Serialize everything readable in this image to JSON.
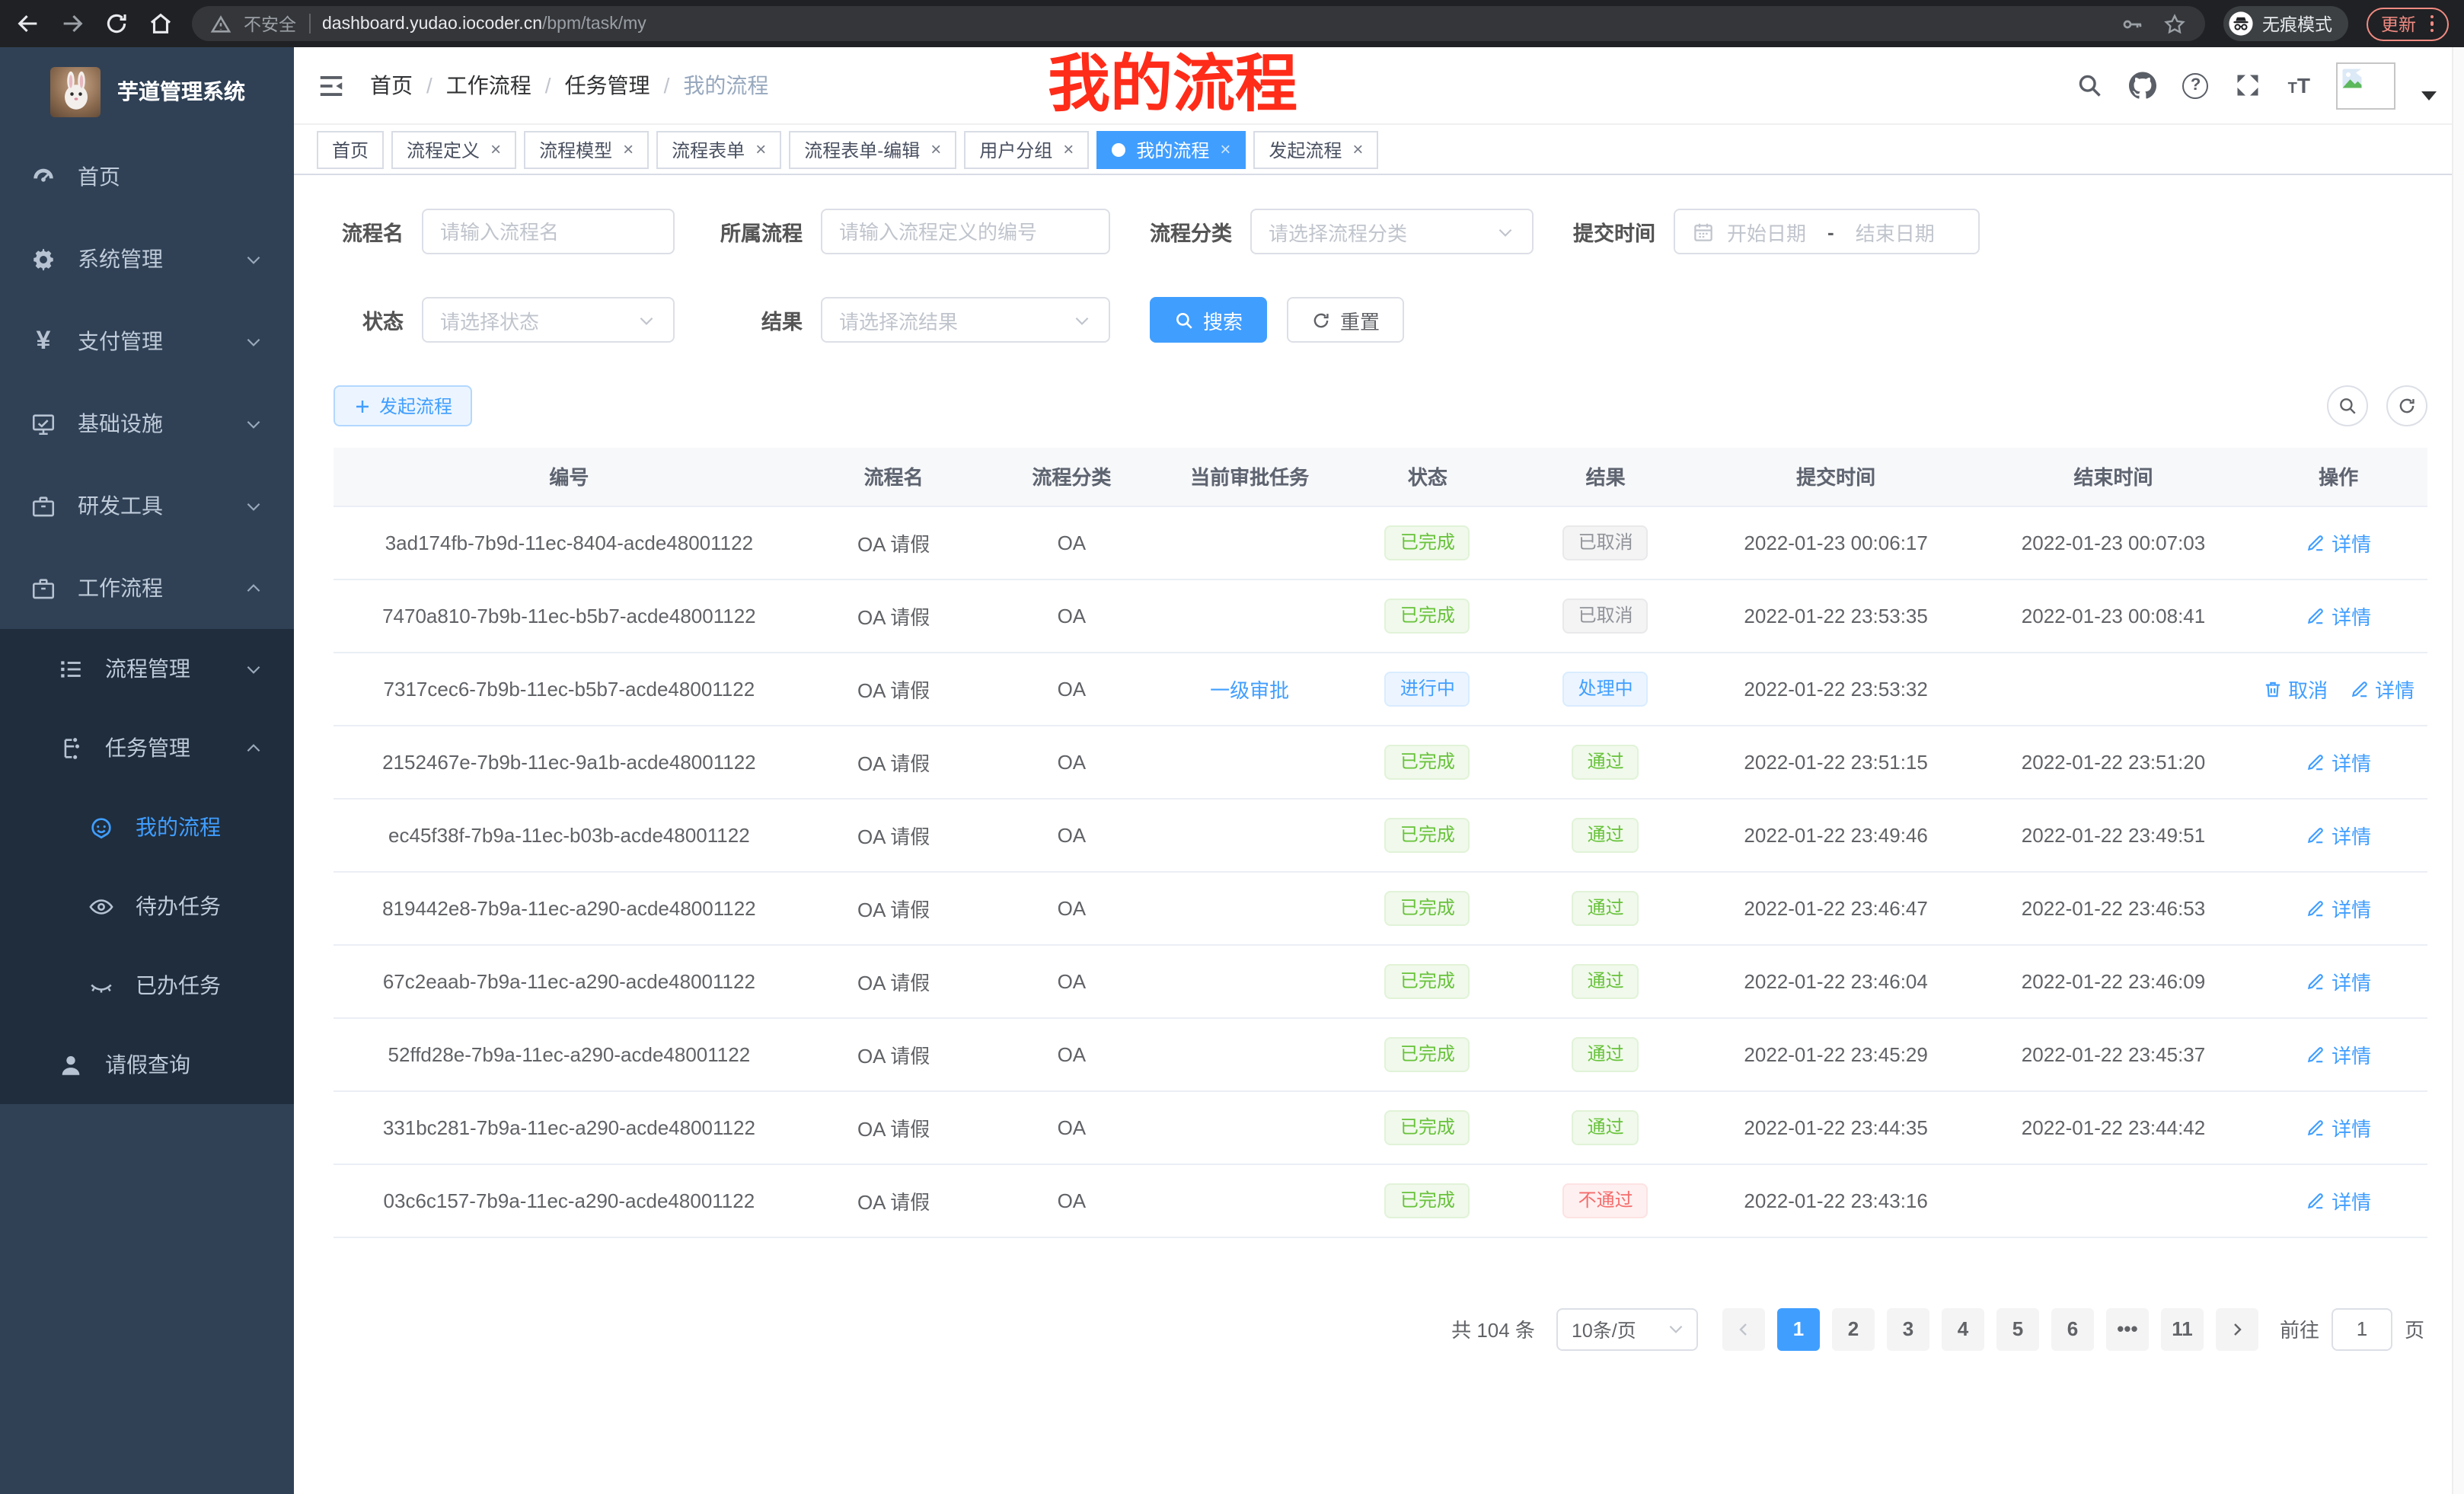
{
  "browser": {
    "security_label": "不安全",
    "url_domain": "dashboard.yudao.iocoder.cn",
    "url_path": "/bpm/task/my",
    "incognito_label": "无痕模式",
    "update_label": "更新"
  },
  "sidebar": {
    "title": "芋道管理系统",
    "items": [
      {
        "label": "首页",
        "icon": "dashboard-icon",
        "level": 1
      },
      {
        "label": "系统管理",
        "icon": "gear-icon",
        "level": 1,
        "chevron": "down"
      },
      {
        "label": "支付管理",
        "icon": "yen-icon",
        "level": 1,
        "chevron": "down"
      },
      {
        "label": "基础设施",
        "icon": "monitor-icon",
        "level": 1,
        "chevron": "down"
      },
      {
        "label": "研发工具",
        "icon": "briefcase-icon",
        "level": 1,
        "chevron": "down"
      },
      {
        "label": "工作流程",
        "icon": "briefcase-icon",
        "level": 1,
        "chevron": "up"
      },
      {
        "label": "流程管理",
        "icon": "list-icon",
        "level": 2,
        "chevron": "down",
        "dark": true
      },
      {
        "label": "任务管理",
        "icon": "tree-icon",
        "level": 2,
        "chevron": "up",
        "dark": true
      },
      {
        "label": "我的流程",
        "icon": "robot-icon",
        "level": 3,
        "active": true,
        "dark": true
      },
      {
        "label": "待办任务",
        "icon": "eye-icon",
        "level": 3,
        "dark": true
      },
      {
        "label": "已办任务",
        "icon": "eye-closed-icon",
        "level": 3,
        "dark": true
      },
      {
        "label": "请假查询",
        "icon": "user-icon",
        "level": 2,
        "dark": true
      }
    ]
  },
  "header": {
    "breadcrumb": [
      "首页",
      "工作流程",
      "任务管理",
      "我的流程"
    ],
    "annotation": "我的流程"
  },
  "tabs": [
    {
      "label": "首页"
    },
    {
      "label": "流程定义",
      "closable": true
    },
    {
      "label": "流程模型",
      "closable": true
    },
    {
      "label": "流程表单",
      "closable": true
    },
    {
      "label": "流程表单-编辑",
      "closable": true
    },
    {
      "label": "用户分组",
      "closable": true
    },
    {
      "label": "我的流程",
      "closable": true,
      "active": true
    },
    {
      "label": "发起流程",
      "closable": true
    }
  ],
  "filters": {
    "name_label": "流程名",
    "name_placeholder": "请输入流程名",
    "process_label": "所属流程",
    "process_placeholder": "请输入流程定义的编号",
    "category_label": "流程分类",
    "category_placeholder": "请选择流程分类",
    "time_label": "提交时间",
    "date_start_placeholder": "开始日期",
    "date_separator": "-",
    "date_end_placeholder": "结束日期",
    "status_label": "状态",
    "status_placeholder": "请选择状态",
    "result_label": "结果",
    "result_placeholder": "请选择流结果",
    "search_label": "搜索",
    "reset_label": "重置"
  },
  "toolbar": {
    "create_label": "发起流程"
  },
  "table": {
    "columns": [
      "编号",
      "流程名",
      "流程分类",
      "当前审批任务",
      "状态",
      "结果",
      "提交时间",
      "结束时间",
      "操作"
    ],
    "rows": [
      {
        "id": "3ad174fb-7b9d-11ec-8404-acde48001122",
        "name": "OA 请假",
        "category": "OA",
        "task": "",
        "status": {
          "label": "已完成",
          "type": "success"
        },
        "result": {
          "label": "已取消",
          "type": "info"
        },
        "submit_time": "2022-01-23 00:06:17",
        "end_time": "2022-01-23 00:07:03",
        "actions": [
          {
            "label": "详情",
            "icon": "edit-icon"
          }
        ]
      },
      {
        "id": "7470a810-7b9b-11ec-b5b7-acde48001122",
        "name": "OA 请假",
        "category": "OA",
        "task": "",
        "status": {
          "label": "已完成",
          "type": "success"
        },
        "result": {
          "label": "已取消",
          "type": "info"
        },
        "submit_time": "2022-01-22 23:53:35",
        "end_time": "2022-01-23 00:08:41",
        "actions": [
          {
            "label": "详情",
            "icon": "edit-icon"
          }
        ]
      },
      {
        "id": "7317cec6-7b9b-11ec-b5b7-acde48001122",
        "name": "OA 请假",
        "category": "OA",
        "task": "一级审批",
        "status": {
          "label": "进行中",
          "type": "primary"
        },
        "result": {
          "label": "处理中",
          "type": "primary"
        },
        "submit_time": "2022-01-22 23:53:32",
        "end_time": "",
        "actions": [
          {
            "label": "取消",
            "icon": "trash-icon"
          },
          {
            "label": "详情",
            "icon": "edit-icon"
          }
        ]
      },
      {
        "id": "2152467e-7b9b-11ec-9a1b-acde48001122",
        "name": "OA 请假",
        "category": "OA",
        "task": "",
        "status": {
          "label": "已完成",
          "type": "success"
        },
        "result": {
          "label": "通过",
          "type": "success"
        },
        "submit_time": "2022-01-22 23:51:15",
        "end_time": "2022-01-22 23:51:20",
        "actions": [
          {
            "label": "详情",
            "icon": "edit-icon"
          }
        ]
      },
      {
        "id": "ec45f38f-7b9a-11ec-b03b-acde48001122",
        "name": "OA 请假",
        "category": "OA",
        "task": "",
        "status": {
          "label": "已完成",
          "type": "success"
        },
        "result": {
          "label": "通过",
          "type": "success"
        },
        "submit_time": "2022-01-22 23:49:46",
        "end_time": "2022-01-22 23:49:51",
        "actions": [
          {
            "label": "详情",
            "icon": "edit-icon"
          }
        ]
      },
      {
        "id": "819442e8-7b9a-11ec-a290-acde48001122",
        "name": "OA 请假",
        "category": "OA",
        "task": "",
        "status": {
          "label": "已完成",
          "type": "success"
        },
        "result": {
          "label": "通过",
          "type": "success"
        },
        "submit_time": "2022-01-22 23:46:47",
        "end_time": "2022-01-22 23:46:53",
        "actions": [
          {
            "label": "详情",
            "icon": "edit-icon"
          }
        ]
      },
      {
        "id": "67c2eaab-7b9a-11ec-a290-acde48001122",
        "name": "OA 请假",
        "category": "OA",
        "task": "",
        "status": {
          "label": "已完成",
          "type": "success"
        },
        "result": {
          "label": "通过",
          "type": "success"
        },
        "submit_time": "2022-01-22 23:46:04",
        "end_time": "2022-01-22 23:46:09",
        "actions": [
          {
            "label": "详情",
            "icon": "edit-icon"
          }
        ]
      },
      {
        "id": "52ffd28e-7b9a-11ec-a290-acde48001122",
        "name": "OA 请假",
        "category": "OA",
        "task": "",
        "status": {
          "label": "已完成",
          "type": "success"
        },
        "result": {
          "label": "通过",
          "type": "success"
        },
        "submit_time": "2022-01-22 23:45:29",
        "end_time": "2022-01-22 23:45:37",
        "actions": [
          {
            "label": "详情",
            "icon": "edit-icon"
          }
        ]
      },
      {
        "id": "331bc281-7b9a-11ec-a290-acde48001122",
        "name": "OA 请假",
        "category": "OA",
        "task": "",
        "status": {
          "label": "已完成",
          "type": "success"
        },
        "result": {
          "label": "通过",
          "type": "success"
        },
        "submit_time": "2022-01-22 23:44:35",
        "end_time": "2022-01-22 23:44:42",
        "actions": [
          {
            "label": "详情",
            "icon": "edit-icon"
          }
        ]
      },
      {
        "id": "03c6c157-7b9a-11ec-a290-acde48001122",
        "name": "OA 请假",
        "category": "OA",
        "task": "",
        "status": {
          "label": "已完成",
          "type": "success"
        },
        "result": {
          "label": "不通过",
          "type": "danger"
        },
        "submit_time": "2022-01-22 23:43:16",
        "end_time": "",
        "actions": [
          {
            "label": "详情",
            "icon": "edit-icon"
          }
        ]
      }
    ]
  },
  "pagination": {
    "total": "共 104 条",
    "page_size": "10条/页",
    "pages": [
      "1",
      "2",
      "3",
      "4",
      "5",
      "6",
      "...",
      "11"
    ],
    "active_page": "1",
    "goto_label": "前往",
    "goto_value": "1",
    "goto_suffix": "页"
  }
}
